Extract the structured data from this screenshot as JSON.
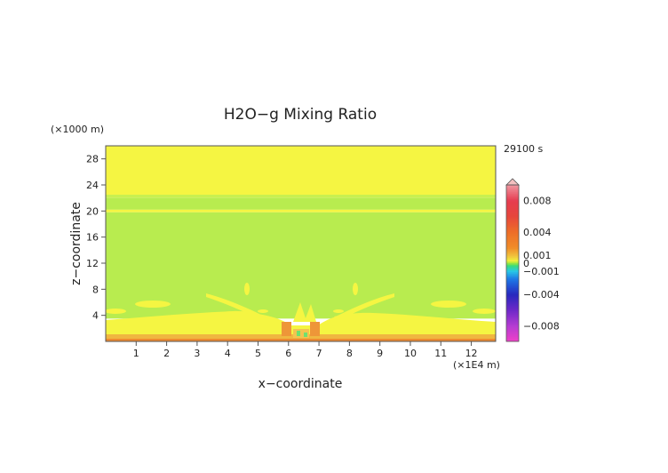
{
  "chart_data": {
    "type": "heatmap",
    "title": "H2O−g Mixing Ratio",
    "xlabel": "x−coordinate",
    "ylabel": "z−coordinate",
    "x_unit": "(×1E4 m)",
    "y_unit": "(×1000 m)",
    "time_label": "29100 s",
    "xlim": [
      0,
      12.8
    ],
    "ylim": [
      0,
      30
    ],
    "x_ticks": [
      "1",
      "2",
      "3",
      "4",
      "5",
      "6",
      "7",
      "8",
      "9",
      "10",
      "11",
      "12"
    ],
    "y_ticks": [
      "4",
      "8",
      "12",
      "16",
      "20",
      "24",
      "28"
    ],
    "colorbar": {
      "range": [
        -0.01,
        0.01
      ],
      "labels": [
        "0.008",
        "0.004",
        "0.001",
        "0",
        "−0.001",
        "−0.004",
        "−0.008"
      ],
      "label_values": [
        0.008,
        0.004,
        0.001,
        0,
        -0.001,
        -0.004,
        -0.008
      ]
    },
    "field_bands": [
      {
        "z_min": 22.5,
        "z_max": 30,
        "color": "#f5f542",
        "value": 0.0002
      },
      {
        "z_min": 22,
        "z_max": 22.5,
        "color": "#c8f050",
        "value": 0.0001
      },
      {
        "z_min": 20.2,
        "z_max": 22,
        "color": "#b8ec4f",
        "value": 0.0001
      },
      {
        "z_min": 19.8,
        "z_max": 20.2,
        "color": "#f5f542",
        "value": 0.0002
      },
      {
        "z_min": 3.5,
        "z_max": 19.8,
        "color": "#b8ec4f",
        "value": 0.0001
      },
      {
        "z_min": 1,
        "z_max": 2.2,
        "color": "#f5f542",
        "value": 0.0003
      },
      {
        "z_min": 0,
        "z_max": 1,
        "color": "#f0b640",
        "value": 0.0008
      }
    ]
  }
}
